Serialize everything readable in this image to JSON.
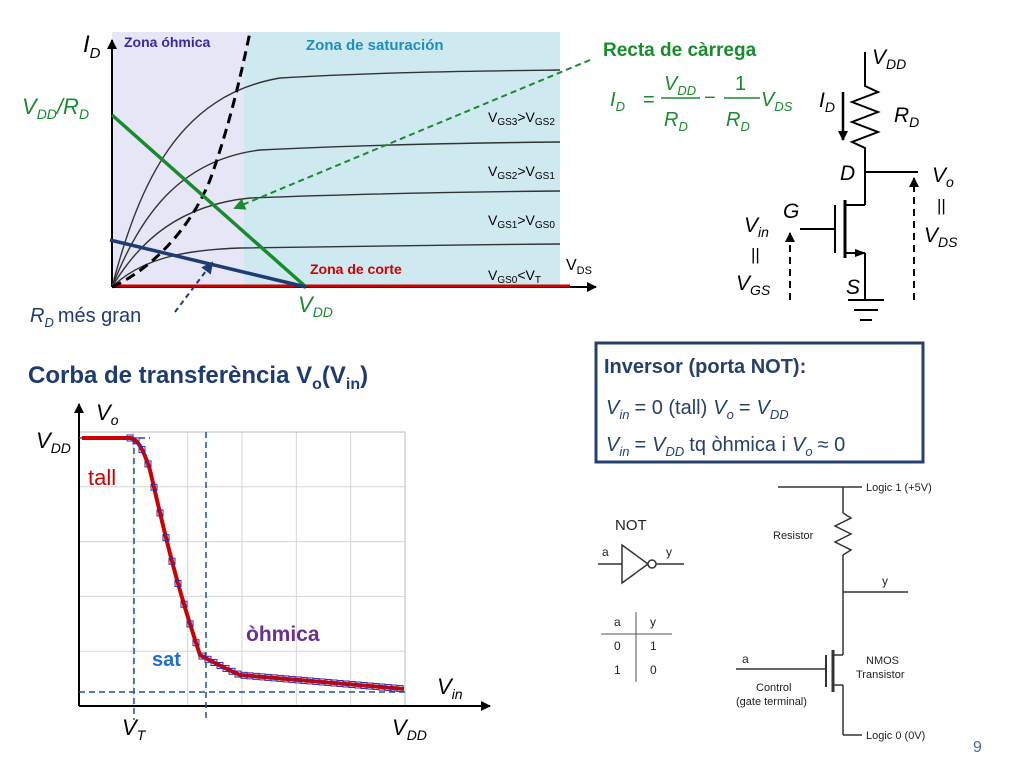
{
  "output_chars": {
    "axes": {
      "y_main": "I",
      "y_sub": "D",
      "x_main": "V",
      "x_sub": "DS"
    },
    "regions": {
      "ohmic": "Zona óhmica",
      "saturation": "Zona de saturación",
      "cutoff": "Zona de corte"
    },
    "curve_labels": [
      {
        "a": "V",
        "a_sub": "GS3",
        "op": ">",
        "b": "V",
        "b_sub": "GS2"
      },
      {
        "a": "V",
        "a_sub": "GS2",
        "op": ">",
        "b": "V",
        "b_sub": "GS1"
      },
      {
        "a": "V",
        "a_sub": "GS1",
        "op": ">",
        "b": "V",
        "b_sub": "GS0"
      },
      {
        "a": "V",
        "a_sub": "GS0",
        "op": "<",
        "b": "V",
        "b_sub": "T"
      }
    ],
    "vdd_rd": {
      "v": "V",
      "v_sub": "DD",
      "slash": "/",
      "r": "R",
      "r_sub": "D"
    },
    "vdd_bottom": {
      "v": "V",
      "v_sub": "DD"
    },
    "rd_bigger": {
      "r": "R",
      "r_sub": "D",
      "text": "més gran"
    },
    "load_line_title": "Recta de càrrega",
    "load_line_eq": {
      "lhs": "I",
      "lhs_sub": "D",
      "eq": "=",
      "num1": "V",
      "num1_sub": "DD",
      "den1": "R",
      "den1_sub": "D",
      "minus": "−",
      "num2": "1",
      "den2": "R",
      "den2_sub": "D",
      "tail": "V",
      "tail_sub": "DS"
    }
  },
  "circuit": {
    "vdd": {
      "main": "V",
      "sub": "DD"
    },
    "id": {
      "main": "I",
      "sub": "D"
    },
    "rd": {
      "main": "R",
      "sub": "D"
    },
    "drain": "D",
    "gate": "G",
    "source": "S",
    "vo": {
      "main": "V",
      "sub": "o"
    },
    "vds": {
      "main": "V",
      "sub": "DS"
    },
    "vin": {
      "main": "V",
      "sub": "in"
    },
    "vgs": {
      "main": "V",
      "sub": "GS"
    },
    "parallel": "||"
  },
  "transfer": {
    "title": "Corba de transferència V",
    "title_sub1": "o",
    "title_paren": "(V",
    "title_sub2": "in",
    "title_close": ")",
    "y_axis": {
      "main": "V",
      "sub": "o"
    },
    "x_axis": {
      "main": "V",
      "sub": "in"
    },
    "vdd_y": {
      "main": "V",
      "sub": "DD"
    },
    "vt_x": {
      "main": "V",
      "sub": "T"
    },
    "vdd_x": {
      "main": "V",
      "sub": "DD"
    },
    "zones": {
      "tall": "tall",
      "sat": "sat",
      "ohmica": "òhmica"
    },
    "colors": {
      "tall": "#cc0000",
      "sat": "#1f6fd1",
      "ohmica": "#6a2f8f",
      "curve": "#cc0000",
      "markers": "#3a2aa0"
    }
  },
  "inverter_box": {
    "title": "Inversor (porta NOT):",
    "line1": {
      "v": "V",
      "v_sub": "in",
      "eq": "= 0 (tall)",
      "vo": "V",
      "vo_sub": "o",
      "eq2": "=",
      "vdd": "V",
      "vdd_sub": "DD"
    },
    "line2": {
      "v": "V",
      "v_sub": "in",
      "eq": "=",
      "vdd": "V",
      "vdd_sub": "DD",
      "mid": "tq òhmica i",
      "vo": "V",
      "vo_sub": "o",
      "approx": "≈ 0"
    }
  },
  "not_gate": {
    "title": "NOT",
    "input": "a",
    "output": "y",
    "table_headers": [
      "a",
      "y"
    ],
    "table_rows": [
      [
        "0",
        "1"
      ],
      [
        "1",
        "0"
      ]
    ]
  },
  "nmos_circuit": {
    "logic1": "Logic 1 (+5V)",
    "resistor": "Resistor",
    "output": "y",
    "input": "a",
    "nmos": [
      "NMOS",
      "Transistor"
    ],
    "control": [
      "Control",
      "(gate terminal)"
    ],
    "logic0": "Logic 0 (0V)"
  },
  "page_number": "9",
  "palette": {
    "green": "#1a8a2e",
    "navy": "#1f3b73",
    "ohmic_fill": "#e6e6f7",
    "sat_fill": "#cfe9f1",
    "box_border": "#27406b",
    "cutoff_red": "#cc0000",
    "zona_ohmica": "#3a2aa0",
    "zona_sat": "#1b8fbf"
  }
}
